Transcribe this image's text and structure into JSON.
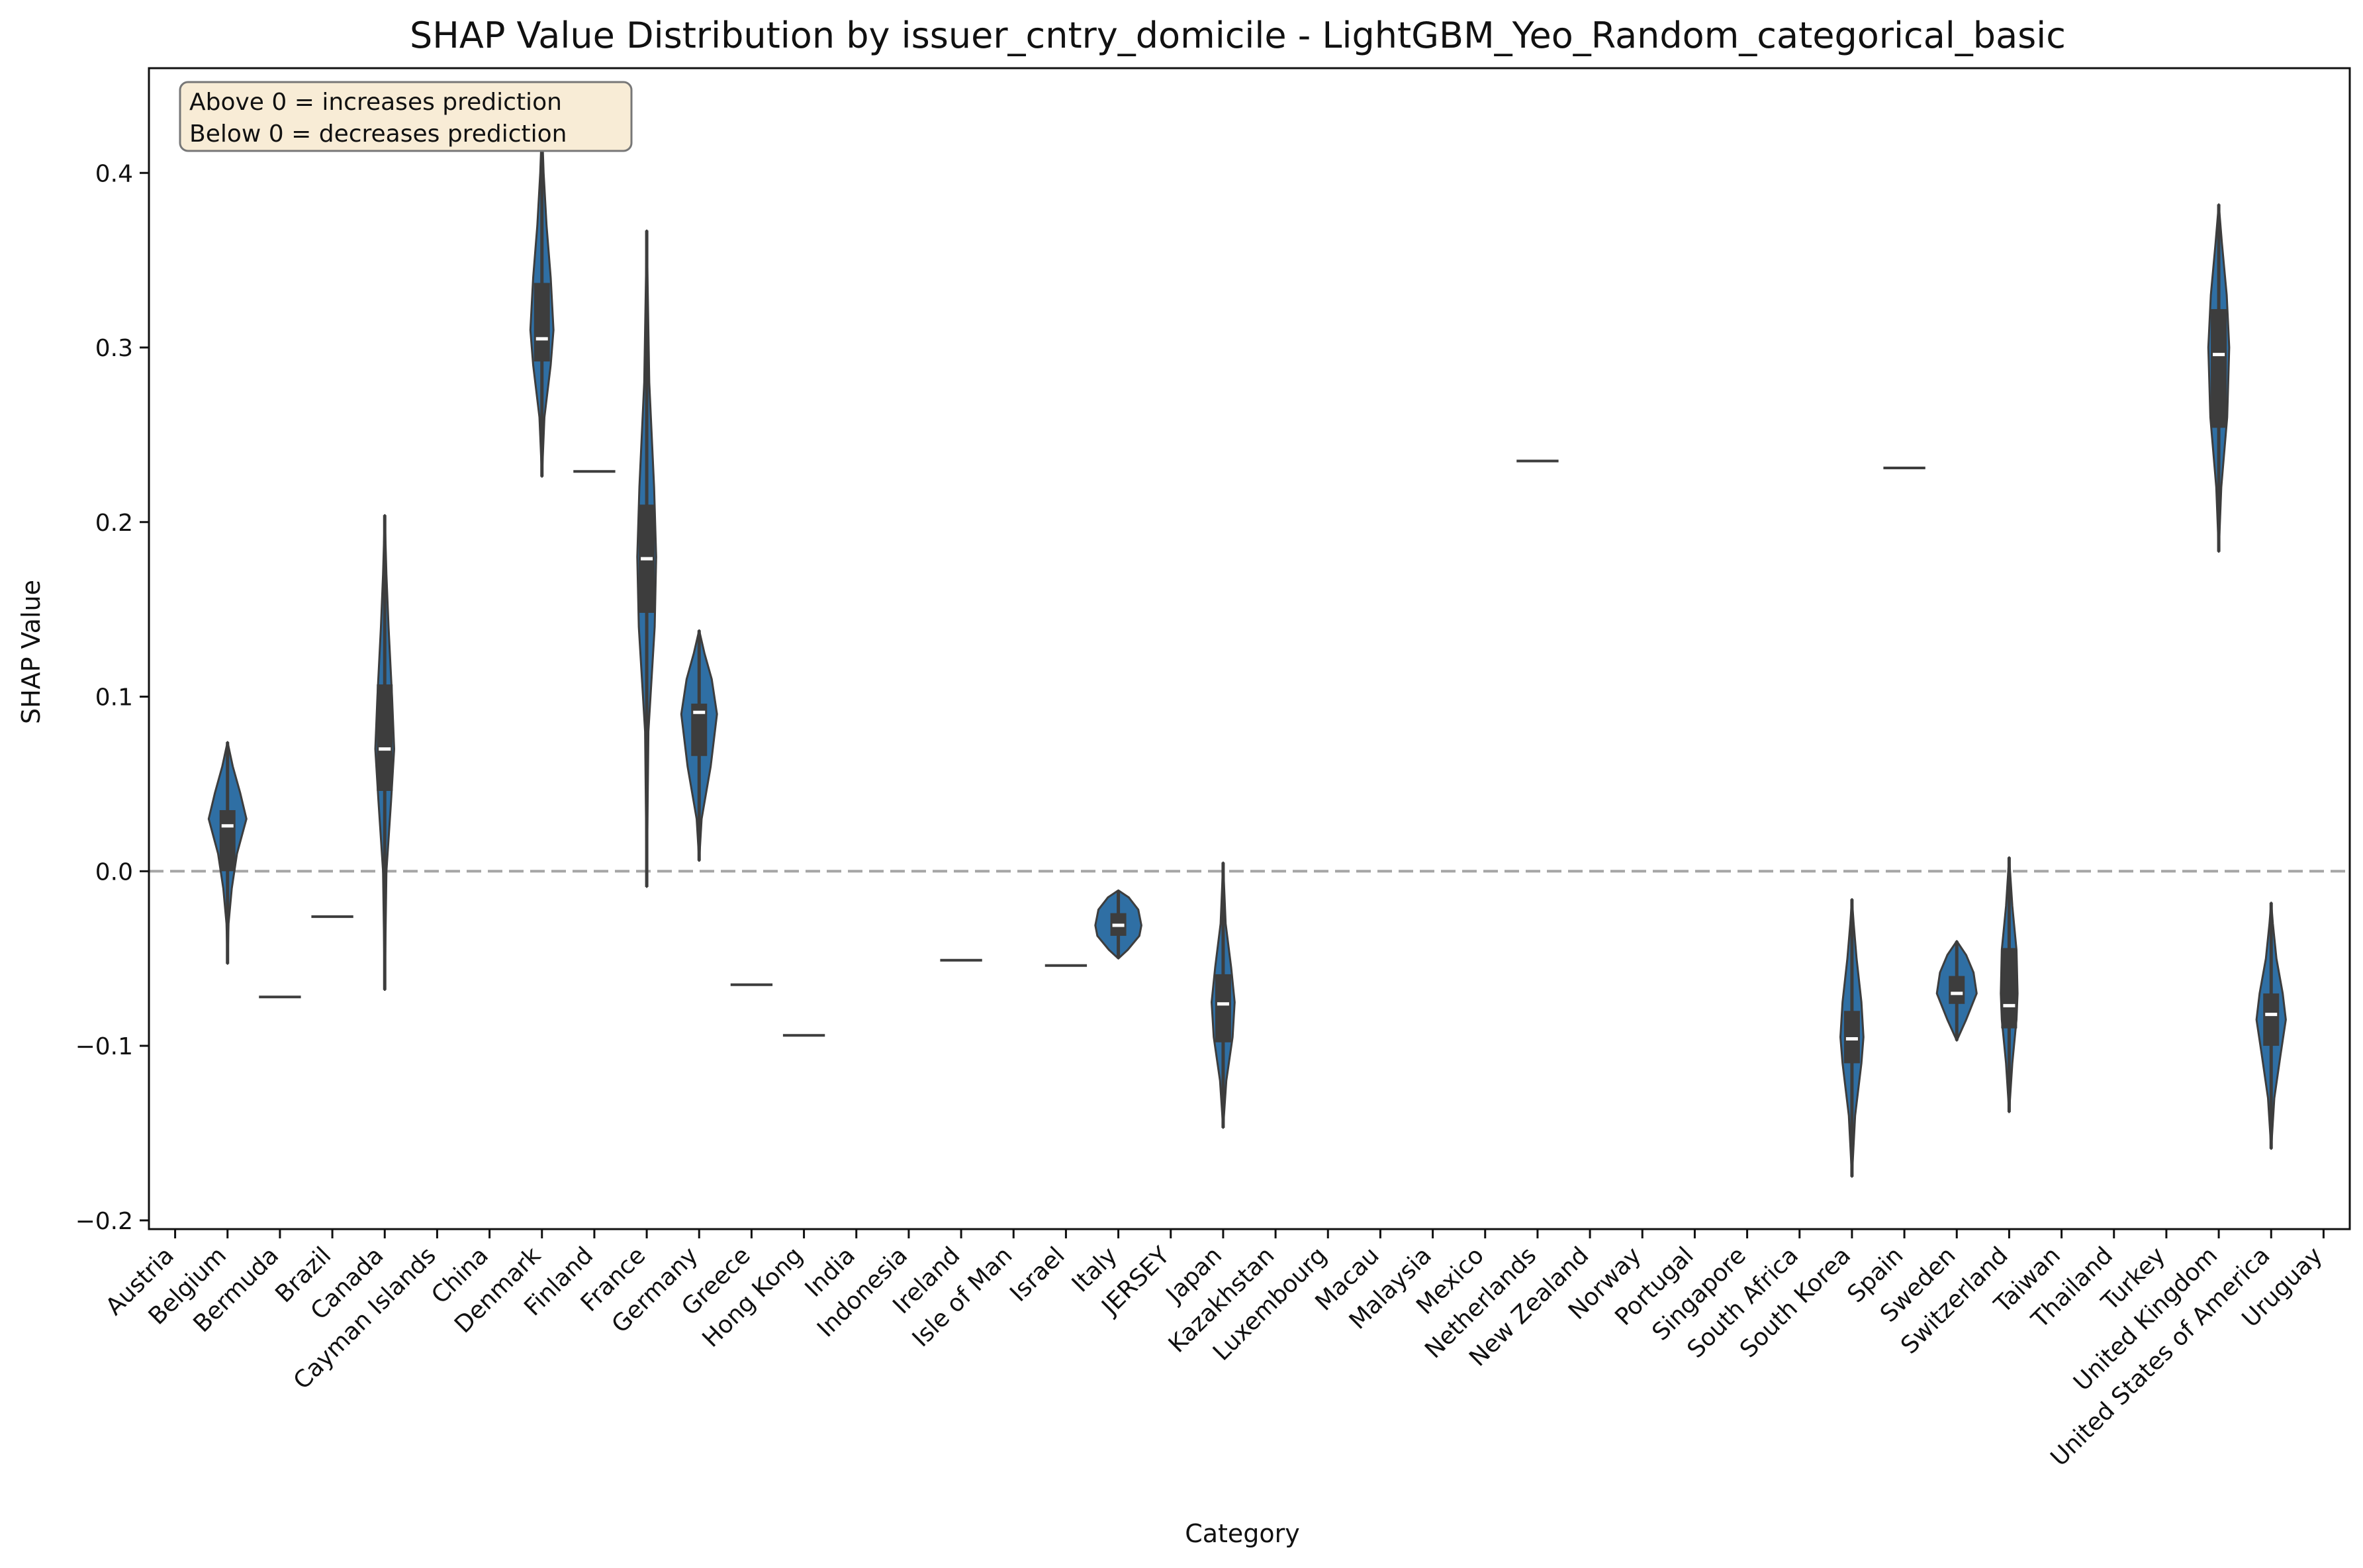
{
  "chart_data": {
    "type": "violin",
    "title": "SHAP Value Distribution by issuer_cntry_domicile - LightGBM_Yeo_Random_categorical_basic",
    "xlabel": "Category",
    "ylabel": "SHAP Value",
    "ylim": [
      -0.205,
      0.46
    ],
    "yticks": [
      -0.2,
      -0.1,
      0.0,
      0.1,
      0.2,
      0.3,
      0.4
    ],
    "ytick_labels": [
      "−0.2",
      "−0.1",
      "0.0",
      "0.1",
      "0.2",
      "0.3",
      "0.4"
    ],
    "reference_line": {
      "y": 0.0,
      "style": "dashed",
      "color": "#a6a6a6"
    },
    "violin_color": "#2f6fa4",
    "box_color": "#3d3d3d",
    "annotation": [
      "Above 0 = increases prediction",
      "Below 0 = decreases prediction"
    ],
    "annotation_bg": "#f8ecd6",
    "categories": [
      "Austria",
      "Belgium",
      "Bermuda",
      "Brazil",
      "Canada",
      "Cayman Islands",
      "China",
      "Denmark",
      "Finland",
      "France",
      "Germany",
      "Greece",
      "Hong Kong",
      "India",
      "Indonesia",
      "Ireland",
      "Isle of Man",
      "Israel",
      "Italy",
      "JERSEY",
      "Japan",
      "Kazakhstan",
      "Luxembourg",
      "Macau",
      "Malaysia",
      "Mexico",
      "Netherlands",
      "New Zealand",
      "Norway",
      "Portugal",
      "Singapore",
      "South Africa",
      "South Korea",
      "Spain",
      "Sweden",
      "Switzerland",
      "Taiwan",
      "Thailand",
      "Turkey",
      "United Kingdom",
      "United States of America",
      "Uruguay"
    ],
    "distributions": [
      null,
      {
        "min": -0.053,
        "max": 0.074,
        "q1": 0.0,
        "median": 0.026,
        "q3": 0.035,
        "profile": [
          [
            -0.053,
            0.0
          ],
          [
            -0.03,
            0.05
          ],
          [
            -0.01,
            0.2
          ],
          [
            0.01,
            0.45
          ],
          [
            0.03,
            0.9
          ],
          [
            0.045,
            0.6
          ],
          [
            0.06,
            0.25
          ],
          [
            0.074,
            0.0
          ]
        ]
      },
      {
        "single": -0.072
      },
      {
        "single": -0.026
      },
      {
        "min": -0.068,
        "max": 0.204,
        "q1": 0.046,
        "median": 0.07,
        "q3": 0.107,
        "profile": [
          [
            -0.068,
            0.0
          ],
          [
            0.0,
            0.08
          ],
          [
            0.04,
            0.3
          ],
          [
            0.07,
            0.45
          ],
          [
            0.1,
            0.35
          ],
          [
            0.14,
            0.18
          ],
          [
            0.17,
            0.08
          ],
          [
            0.204,
            0.0
          ]
        ]
      },
      null,
      null,
      {
        "min": 0.226,
        "max": 0.427,
        "q1": 0.292,
        "median": 0.305,
        "q3": 0.337,
        "profile": [
          [
            0.226,
            0.0
          ],
          [
            0.26,
            0.12
          ],
          [
            0.29,
            0.42
          ],
          [
            0.31,
            0.55
          ],
          [
            0.34,
            0.42
          ],
          [
            0.37,
            0.22
          ],
          [
            0.4,
            0.08
          ],
          [
            0.427,
            0.0
          ]
        ]
      },
      {
        "single": 0.229
      },
      {
        "min": -0.009,
        "max": 0.367,
        "q1": 0.148,
        "median": 0.179,
        "q3": 0.21,
        "profile": [
          [
            -0.009,
            0.0
          ],
          [
            0.08,
            0.08
          ],
          [
            0.14,
            0.38
          ],
          [
            0.18,
            0.45
          ],
          [
            0.22,
            0.35
          ],
          [
            0.28,
            0.12
          ],
          [
            0.33,
            0.05
          ],
          [
            0.367,
            0.0
          ]
        ]
      },
      {
        "min": 0.006,
        "max": 0.138,
        "q1": 0.066,
        "median": 0.091,
        "q3": 0.096,
        "profile": [
          [
            0.006,
            0.0
          ],
          [
            0.03,
            0.12
          ],
          [
            0.06,
            0.55
          ],
          [
            0.09,
            0.85
          ],
          [
            0.11,
            0.6
          ],
          [
            0.125,
            0.25
          ],
          [
            0.138,
            0.0
          ]
        ]
      },
      {
        "single": -0.065
      },
      {
        "single": -0.094
      },
      null,
      null,
      {
        "single": -0.051
      },
      null,
      {
        "single": -0.054
      },
      {
        "min": -0.05,
        "max": -0.011,
        "q1": -0.037,
        "median": -0.031,
        "q3": -0.024,
        "profile": [
          [
            -0.05,
            0.0
          ],
          [
            -0.045,
            0.45
          ],
          [
            -0.037,
            1.0
          ],
          [
            -0.031,
            1.1
          ],
          [
            -0.022,
            0.95
          ],
          [
            -0.015,
            0.5
          ],
          [
            -0.011,
            0.0
          ]
        ]
      },
      null,
      {
        "min": -0.147,
        "max": 0.005,
        "q1": -0.098,
        "median": -0.076,
        "q3": -0.059,
        "profile": [
          [
            -0.147,
            0.0
          ],
          [
            -0.12,
            0.15
          ],
          [
            -0.095,
            0.45
          ],
          [
            -0.075,
            0.55
          ],
          [
            -0.055,
            0.38
          ],
          [
            -0.03,
            0.12
          ],
          [
            -0.01,
            0.05
          ],
          [
            0.005,
            0.0
          ]
        ]
      },
      null,
      null,
      null,
      null,
      null,
      {
        "single": 0.235
      },
      null,
      null,
      null,
      null,
      null,
      {
        "min": -0.175,
        "max": -0.016,
        "q1": -0.11,
        "median": -0.096,
        "q3": -0.08,
        "profile": [
          [
            -0.175,
            0.0
          ],
          [
            -0.14,
            0.15
          ],
          [
            -0.11,
            0.45
          ],
          [
            -0.095,
            0.55
          ],
          [
            -0.075,
            0.45
          ],
          [
            -0.05,
            0.22
          ],
          [
            -0.03,
            0.08
          ],
          [
            -0.016,
            0.0
          ]
        ]
      },
      {
        "single": 0.231
      },
      {
        "min": -0.097,
        "max": -0.04,
        "q1": -0.076,
        "median": -0.07,
        "q3": -0.06,
        "profile": [
          [
            -0.097,
            0.0
          ],
          [
            -0.085,
            0.45
          ],
          [
            -0.07,
            0.95
          ],
          [
            -0.058,
            0.8
          ],
          [
            -0.048,
            0.45
          ],
          [
            -0.04,
            0.0
          ]
        ]
      },
      {
        "min": -0.138,
        "max": 0.008,
        "q1": -0.09,
        "median": -0.077,
        "q3": -0.044,
        "profile": [
          [
            -0.138,
            0.0
          ],
          [
            -0.11,
            0.15
          ],
          [
            -0.085,
            0.35
          ],
          [
            -0.07,
            0.4
          ],
          [
            -0.045,
            0.35
          ],
          [
            -0.02,
            0.15
          ],
          [
            0.008,
            0.0
          ]
        ]
      },
      null,
      null,
      null,
      {
        "min": 0.183,
        "max": 0.382,
        "q1": 0.254,
        "median": 0.296,
        "q3": 0.322,
        "profile": [
          [
            0.183,
            0.0
          ],
          [
            0.22,
            0.12
          ],
          [
            0.26,
            0.4
          ],
          [
            0.3,
            0.5
          ],
          [
            0.33,
            0.38
          ],
          [
            0.36,
            0.15
          ],
          [
            0.382,
            0.0
          ]
        ]
      },
      {
        "min": -0.159,
        "max": -0.018,
        "q1": -0.1,
        "median": -0.082,
        "q3": -0.07,
        "profile": [
          [
            -0.159,
            0.0
          ],
          [
            -0.13,
            0.15
          ],
          [
            -0.105,
            0.45
          ],
          [
            -0.085,
            0.7
          ],
          [
            -0.07,
            0.55
          ],
          [
            -0.05,
            0.25
          ],
          [
            -0.03,
            0.08
          ],
          [
            -0.018,
            0.0
          ]
        ]
      },
      null
    ]
  }
}
